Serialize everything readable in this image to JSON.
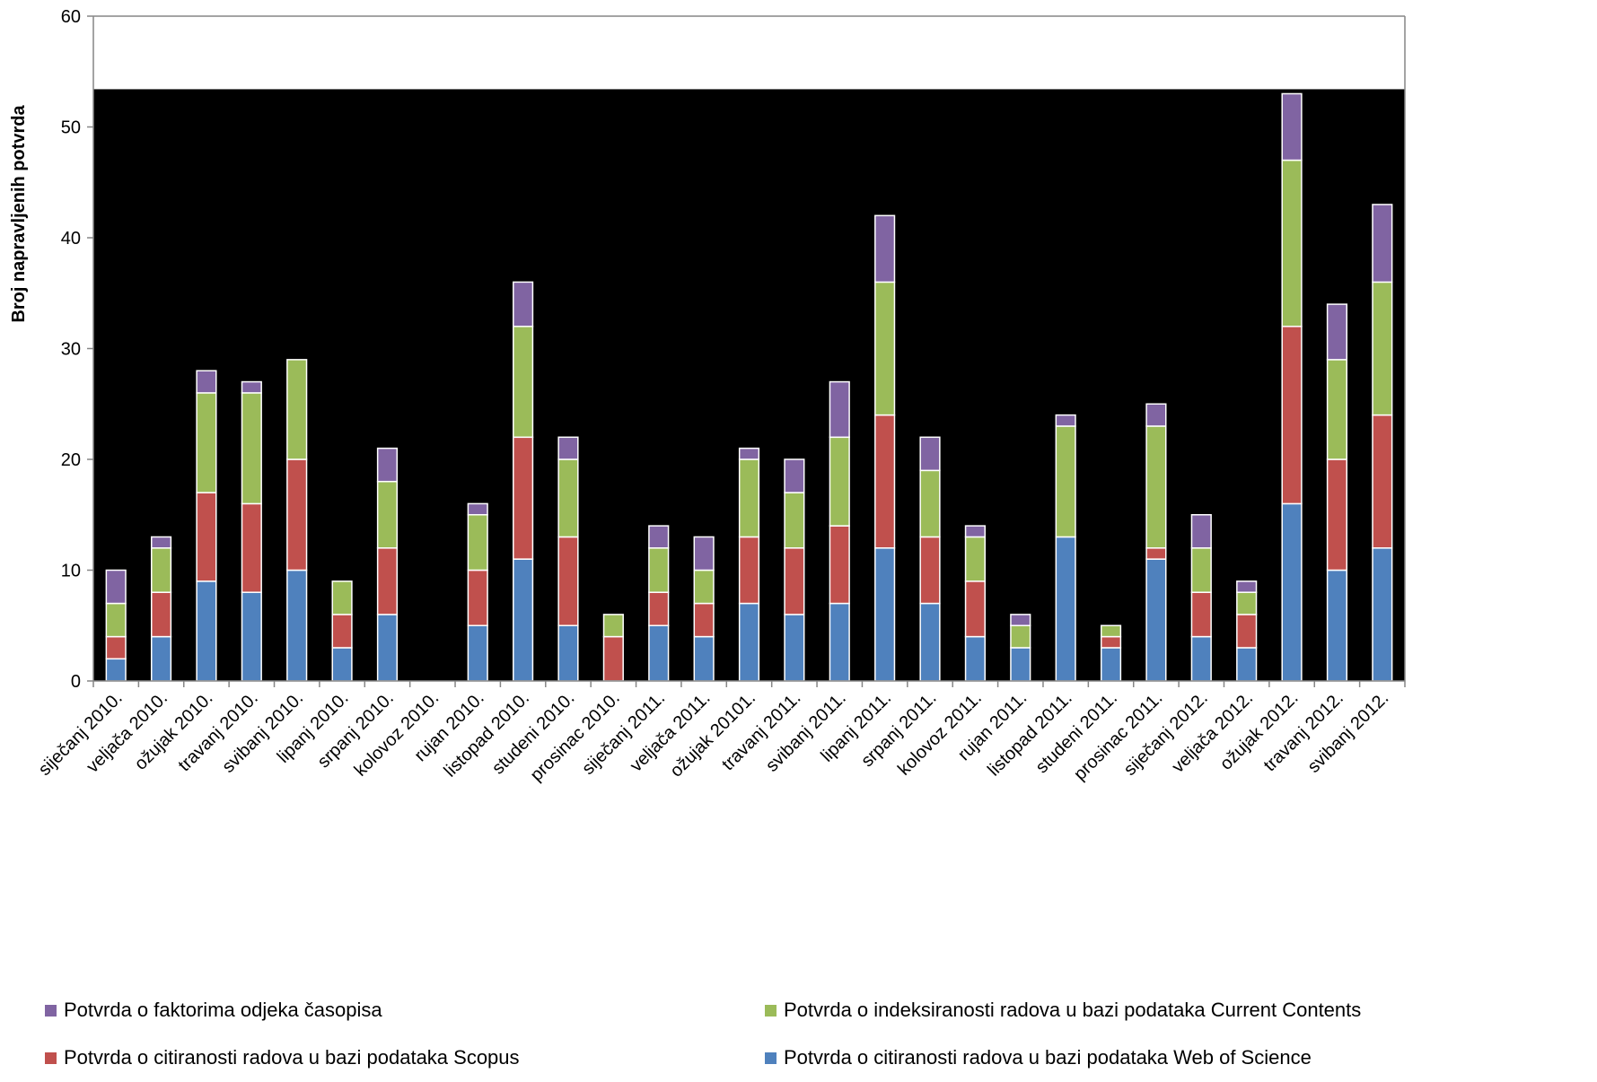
{
  "chart_data": {
    "type": "bar",
    "stacked": true,
    "title": "",
    "xlabel": "",
    "ylabel": "Broj napravljenih potvrda",
    "ylim": [
      0,
      60
    ],
    "yticks": [
      0,
      10,
      20,
      30,
      40,
      50,
      60
    ],
    "grid": false,
    "legend_position": "bottom",
    "categories": [
      "siječanj 2010.",
      "veljača 2010.",
      "ožujak 2010.",
      "travanj 2010.",
      "svibanj 2010.",
      "lipanj 2010.",
      "srpanj 2010.",
      "kolovoz 2010.",
      "rujan 2010.",
      "listopad 2010.",
      "studeni 2010.",
      "prosinac 2010.",
      "siječanj 2011.",
      "veljača 2011.",
      "ožujak 20101.",
      "travanj 2011.",
      "svibanj 2011.",
      "lipanj 2011.",
      "srpanj 2011.",
      "kolovoz 2011.",
      "rujan 2011.",
      "listopad 2011.",
      "studeni 2011.",
      "prosinac 2011.",
      "siječanj 2012.",
      "veljača 2012.",
      "ožujak 2012.",
      "travanj 2012.",
      "svibanj 2012."
    ],
    "series": [
      {
        "name": "Potvrda o citiranosti radova u bazi podataka Web of Science",
        "color": "#4F81BD",
        "values": [
          2,
          4,
          9,
          8,
          10,
          3,
          6,
          0,
          5,
          11,
          5,
          0,
          5,
          4,
          7,
          6,
          7,
          12,
          7,
          4,
          3,
          13,
          3,
          11,
          4,
          3,
          16,
          10,
          12
        ]
      },
      {
        "name": "Potvrda o citiranosti radova u bazi podataka Scopus",
        "color": "#C0504D",
        "values": [
          2,
          4,
          8,
          8,
          10,
          3,
          6,
          0,
          5,
          11,
          8,
          4,
          3,
          3,
          6,
          6,
          7,
          12,
          6,
          5,
          0,
          0,
          1,
          1,
          4,
          3,
          16,
          10,
          12
        ]
      },
      {
        "name": "Potvrda o indeksiranosti radova u bazi podataka Current Contents",
        "color": "#9BBB59",
        "values": [
          3,
          4,
          9,
          10,
          9,
          3,
          6,
          0,
          5,
          10,
          7,
          2,
          4,
          3,
          7,
          5,
          8,
          12,
          6,
          4,
          2,
          10,
          1,
          11,
          4,
          2,
          15,
          9,
          12
        ]
      },
      {
        "name": "Potvrda o faktorima odjeka časopisa",
        "color": "#8064A2",
        "values": [
          3,
          1,
          2,
          1,
          0,
          0,
          3,
          0,
          1,
          4,
          2,
          0,
          2,
          3,
          1,
          3,
          5,
          6,
          3,
          1,
          1,
          1,
          0,
          2,
          3,
          1,
          6,
          5,
          7
        ]
      }
    ]
  },
  "legend": [
    {
      "label": "Potvrda o faktorima odjeka časopisa",
      "color": "#8064A2"
    },
    {
      "label": "Potvrda o indeksiranosti radova u bazi podataka Current Contents",
      "color": "#9BBB59"
    },
    {
      "label": "Potvrda o citiranosti radova u bazi podataka Scopus",
      "color": "#C0504D"
    },
    {
      "label": "Potvrda o citiranosti radova u bazi podataka Web of Science",
      "color": "#4F81BD"
    }
  ],
  "plot_background": "#000000"
}
